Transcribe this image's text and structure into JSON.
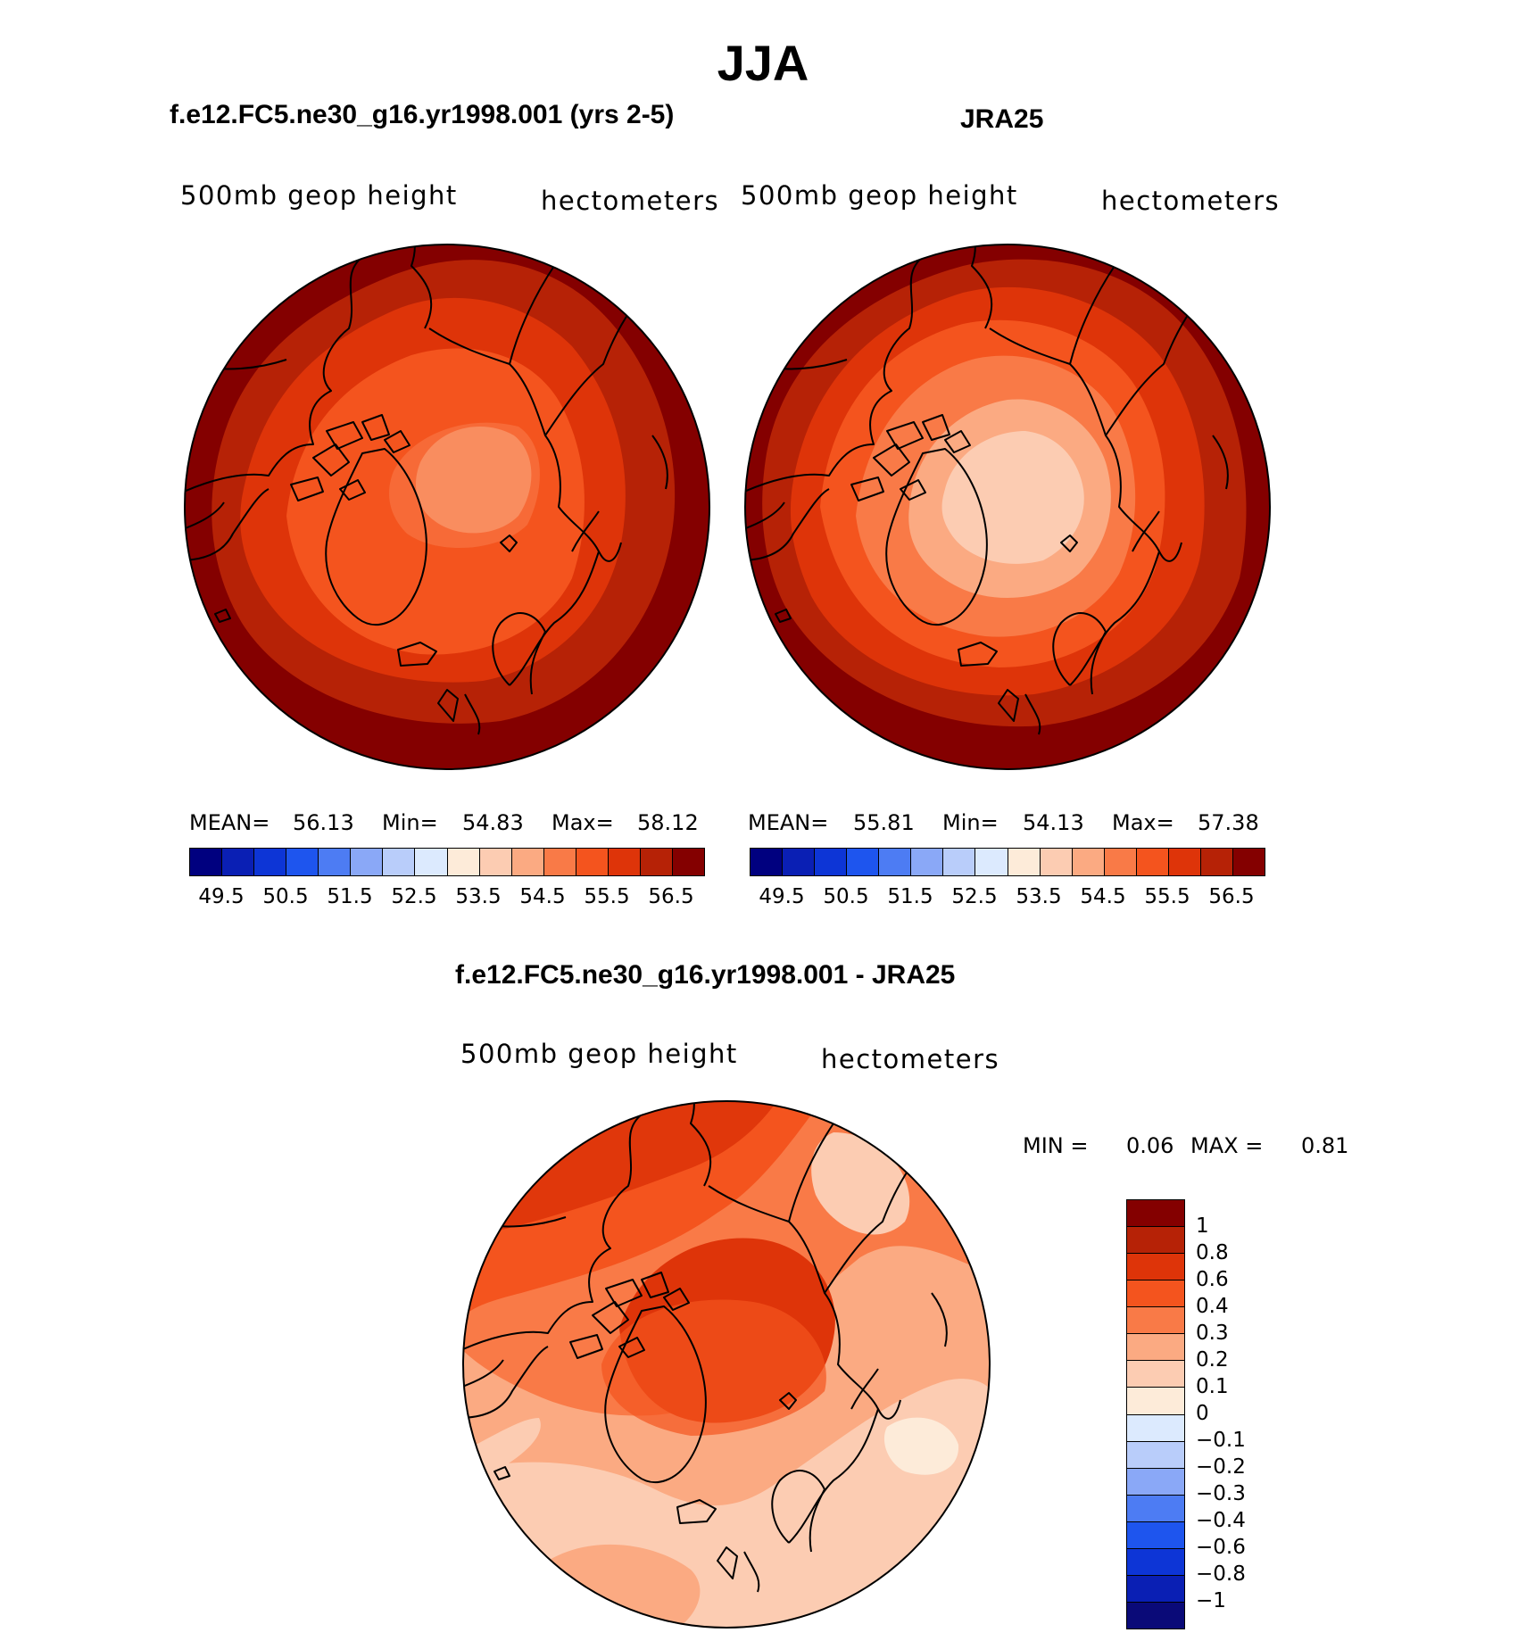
{
  "page": {
    "title": "JJA"
  },
  "colors": {
    "blue_red": [
      "#00007f",
      "#0a1fb4",
      "#0d35d6",
      "#1e55ee",
      "#4d7cf3",
      "#8aa8f7",
      "#b9cdfa",
      "#dceafe",
      "#fdebd9",
      "#fcccb2",
      "#fbaa82",
      "#f97a47",
      "#f4541e",
      "#de3409",
      "#b62206",
      "#840000"
    ],
    "diff": [
      "#0a0a78",
      "#0a1fb4",
      "#0d35d6",
      "#1e55ee",
      "#4d7cf3",
      "#8aa8f7",
      "#b9cdfa",
      "#dceafe",
      "#fdebd9",
      "#fcccb2",
      "#fbaa82",
      "#f97a47",
      "#f4541e",
      "#de3409",
      "#b62206",
      "#840000"
    ]
  },
  "panels": {
    "model": {
      "title": "f.e12.FC5.ne30_g16.yr1998.001 (yrs 2-5)",
      "left_label": "500mb  geop  height",
      "right_label": "hectometers",
      "stats": {
        "mean_label": "MEAN=",
        "mean": "56.13",
        "min_label": "Min=",
        "min": "54.83",
        "max_label": "Max=",
        "max": "58.12"
      }
    },
    "obs": {
      "title": "JRA25",
      "left_label": "500mb  geop  height",
      "right_label": "hectometers",
      "stats": {
        "mean_label": "MEAN=",
        "mean": "55.81",
        "min_label": "Min=",
        "min": "54.13",
        "max_label": "Max=",
        "max": "57.38"
      }
    },
    "diff": {
      "title": "f.e12.FC5.ne30_g16.yr1998.001 - JRA25",
      "left_label": "500mb  geop  height",
      "right_label": "hectometers",
      "stats": {
        "min_label": "MIN =",
        "min": "0.06",
        "max_label": "MAX =",
        "max": "0.81"
      }
    }
  },
  "chart_data": [
    {
      "type": "heatmap",
      "projection": "north polar stereographic",
      "title": "f.e12.FC5.ne30_g16.yr1998.001 (yrs 2-5)",
      "variable": "500mb geop height",
      "units": "hectometers",
      "mean": 56.13,
      "min": 54.83,
      "max": 58.12,
      "colorbar_levels": [
        49.5,
        50,
        50.5,
        51,
        51.5,
        52,
        52.5,
        53,
        53.5,
        54,
        54.5,
        55,
        55.5,
        56,
        56.5
      ],
      "colorbar_tick_labels": [
        "49.5",
        "50.5",
        "51.5",
        "52.5",
        "53.5",
        "54.5",
        "55.5",
        "56.5"
      ]
    },
    {
      "type": "heatmap",
      "projection": "north polar stereographic",
      "title": "JRA25",
      "variable": "500mb geop height",
      "units": "hectometers",
      "mean": 55.81,
      "min": 54.13,
      "max": 57.38,
      "colorbar_levels": [
        49.5,
        50,
        50.5,
        51,
        51.5,
        52,
        52.5,
        53,
        53.5,
        54,
        54.5,
        55,
        55.5,
        56,
        56.5
      ],
      "colorbar_tick_labels": [
        "49.5",
        "50.5",
        "51.5",
        "52.5",
        "53.5",
        "54.5",
        "55.5",
        "56.5"
      ]
    },
    {
      "type": "heatmap",
      "projection": "north polar stereographic",
      "title": "f.e12.FC5.ne30_g16.yr1998.001 - JRA25",
      "variable": "500mb geop height",
      "units": "hectometers",
      "min": 0.06,
      "max": 0.81,
      "colorbar_levels": [
        -1,
        -0.8,
        -0.6,
        -0.4,
        -0.3,
        -0.2,
        -0.1,
        0,
        0.1,
        0.2,
        0.3,
        0.4,
        0.6,
        0.8,
        1
      ],
      "colorbar_tick_labels": [
        "1",
        "0.8",
        "0.6",
        "0.4",
        "0.3",
        "0.2",
        "0.1",
        "0",
        "−0.1",
        "−0.2",
        "−0.3",
        "−0.4",
        "−0.6",
        "−0.8",
        "−1"
      ]
    }
  ]
}
